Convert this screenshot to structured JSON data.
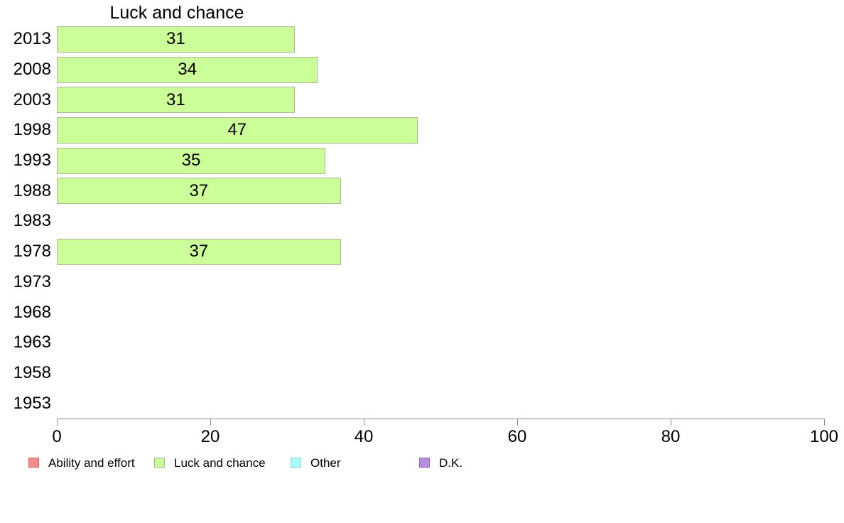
{
  "chart_data": {
    "type": "bar",
    "orientation": "horizontal",
    "title": "Luck and chance",
    "categories": [
      "2013",
      "2008",
      "2003",
      "1998",
      "1993",
      "1988",
      "1983",
      "1978",
      "1973",
      "1968",
      "1963",
      "1958",
      "1953"
    ],
    "values": [
      31,
      34,
      31,
      47,
      35,
      37,
      null,
      37,
      null,
      null,
      null,
      null,
      null
    ],
    "xlabel": "",
    "ylabel": "",
    "xlim": [
      0,
      100
    ],
    "x_ticks": [
      0,
      20,
      40,
      60,
      80,
      100
    ],
    "grid": false,
    "legend_position": "bottom",
    "bar_fill": "#ccff99",
    "bar_border": "#a9b694",
    "axis_color": "#8c8c8c",
    "label_color": "#000000",
    "background": "#ffffff"
  },
  "legend": {
    "items": [
      {
        "label": "Ability and effort",
        "fill": "#f58c8c",
        "border": "#cc6666"
      },
      {
        "label": "Luck and chance",
        "fill": "#ccff99",
        "border": "#a3b18d"
      },
      {
        "label": "Other",
        "fill": "#aaffff",
        "border": "#86cfcf"
      },
      {
        "label": "D.K.",
        "fill": "#b78fe0",
        "border": "#8f63c2"
      }
    ]
  }
}
